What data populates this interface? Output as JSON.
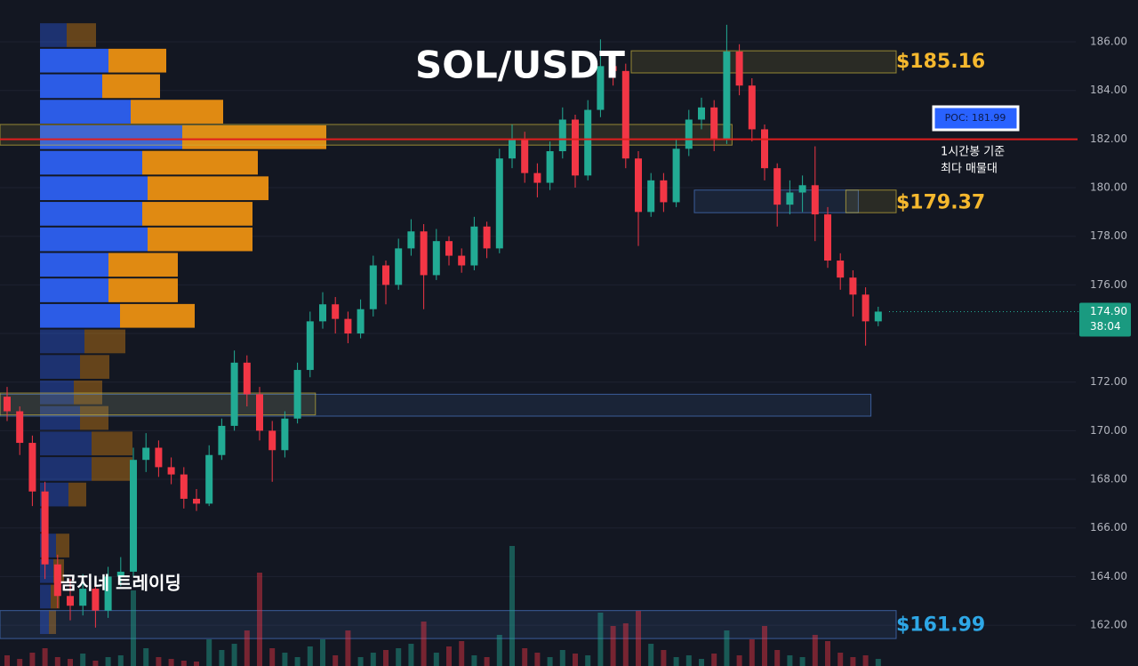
{
  "chart_data": {
    "type": "candlestick",
    "title": "SOL/USDT",
    "ylim": [
      160.32,
      187.72
    ],
    "yticks": [
      {
        "value": 162,
        "label": "162.00"
      },
      {
        "value": 164,
        "label": "164.00"
      },
      {
        "value": 166,
        "label": "166.00"
      },
      {
        "value": 168,
        "label": "168.00"
      },
      {
        "value": 170,
        "label": "170.00"
      },
      {
        "value": 172,
        "label": "172.00"
      },
      {
        "value": 174,
        "label": "174.00"
      },
      {
        "value": 176,
        "label": "176.00"
      },
      {
        "value": 178,
        "label": "178.00"
      },
      {
        "value": 180,
        "label": "180.00"
      },
      {
        "value": 182,
        "label": "182.00"
      },
      {
        "value": 184,
        "label": "184.00"
      },
      {
        "value": 186,
        "label": "186.00"
      }
    ],
    "grid": true,
    "up_color": "#22ab94",
    "down_color": "#f23645",
    "open": [
      171.4,
      170.8,
      169.5,
      167.5,
      164.5,
      163.2,
      162.8,
      163.5,
      162.6,
      164.0,
      164.2,
      168.8,
      169.3,
      168.5,
      168.2,
      167.2,
      167.0,
      169.0,
      170.2,
      172.8,
      171.5,
      170.0,
      169.2,
      170.5,
      172.5,
      174.5,
      175.2,
      174.6,
      174.0,
      175.0,
      176.8,
      176.0,
      177.5,
      178.2,
      176.4,
      177.8,
      177.2,
      176.8,
      178.4,
      177.5,
      181.2,
      182.0,
      180.6,
      180.2,
      181.5,
      182.8,
      180.5,
      183.2,
      185.0,
      184.8,
      181.2,
      179.0,
      180.3,
      179.4,
      181.6,
      182.8,
      183.3,
      182.0,
      185.6,
      184.2,
      182.4,
      180.8,
      179.3,
      179.8,
      180.1,
      178.9,
      177.0,
      176.3,
      175.6,
      174.5
    ],
    "high": [
      171.8,
      171.0,
      169.8,
      167.9,
      164.9,
      163.9,
      164.1,
      163.8,
      164.4,
      164.8,
      169.3,
      169.9,
      169.6,
      168.9,
      168.5,
      167.6,
      169.4,
      170.5,
      173.3,
      173.1,
      171.8,
      170.4,
      170.8,
      172.8,
      174.9,
      175.7,
      175.5,
      174.9,
      175.4,
      177.2,
      177.0,
      177.9,
      178.7,
      178.5,
      178.3,
      178.0,
      177.5,
      178.8,
      178.6,
      181.6,
      182.6,
      182.3,
      181.0,
      181.9,
      183.3,
      183.0,
      183.6,
      186.1,
      185.6,
      185.1,
      181.5,
      180.6,
      180.6,
      182.0,
      183.2,
      183.7,
      183.6,
      186.7,
      185.9,
      184.5,
      182.6,
      181.0,
      180.3,
      180.5,
      181.7,
      179.2,
      177.3,
      176.6,
      175.9,
      175.1
    ],
    "low": [
      170.4,
      169.0,
      166.9,
      163.9,
      162.7,
      162.2,
      162.4,
      161.9,
      162.3,
      163.6,
      164.0,
      168.3,
      168.1,
      167.8,
      166.8,
      166.7,
      166.9,
      168.8,
      170.0,
      171.0,
      169.6,
      167.9,
      168.9,
      170.3,
      172.2,
      174.2,
      174.0,
      173.6,
      173.8,
      174.7,
      175.2,
      175.8,
      177.2,
      175.0,
      176.2,
      176.8,
      176.5,
      176.6,
      177.1,
      177.3,
      180.8,
      180.2,
      179.6,
      179.9,
      181.2,
      180.0,
      180.3,
      182.9,
      184.2,
      180.8,
      177.6,
      178.8,
      179.0,
      179.2,
      181.3,
      182.4,
      181.5,
      181.8,
      183.8,
      181.9,
      180.3,
      178.4,
      178.9,
      179.0,
      177.8,
      176.7,
      175.8,
      174.7,
      173.5,
      174.3
    ],
    "close": [
      170.8,
      169.5,
      167.5,
      164.5,
      163.2,
      162.8,
      163.5,
      162.6,
      164.0,
      164.2,
      168.8,
      169.3,
      168.5,
      168.2,
      167.2,
      167.0,
      169.0,
      170.2,
      172.8,
      171.5,
      170.0,
      169.2,
      170.5,
      172.5,
      174.5,
      175.2,
      174.6,
      174.0,
      175.0,
      176.8,
      176.0,
      177.5,
      178.2,
      176.4,
      177.8,
      177.2,
      176.8,
      178.4,
      177.5,
      181.2,
      182.0,
      180.6,
      180.2,
      181.5,
      182.8,
      180.5,
      183.2,
      185.0,
      184.8,
      181.2,
      179.0,
      180.3,
      179.4,
      181.6,
      182.8,
      183.3,
      182.0,
      185.6,
      184.2,
      182.4,
      180.8,
      179.3,
      179.8,
      180.1,
      178.9,
      177.0,
      176.3,
      175.6,
      174.5,
      174.9
    ],
    "volume": [
      12,
      8,
      15,
      20,
      10,
      8,
      14,
      6,
      10,
      12,
      85,
      20,
      10,
      8,
      6,
      5,
      30,
      18,
      25,
      40,
      105,
      20,
      15,
      10,
      22,
      30,
      12,
      40,
      10,
      15,
      18,
      20,
      25,
      50,
      15,
      22,
      28,
      12,
      10,
      35,
      135,
      20,
      15,
      10,
      18,
      14,
      12,
      60,
      45,
      48,
      62,
      25,
      18,
      10,
      12,
      8,
      14,
      40,
      12,
      30,
      45,
      18,
      12,
      10,
      35,
      28,
      15,
      10,
      12,
      8
    ],
    "volume_lim": [
      0,
      160
    ],
    "profile": {
      "bins": [
        186.8,
        185.75,
        184.7,
        183.65,
        182.6,
        181.55,
        180.5,
        179.45,
        178.4,
        177.35,
        176.3,
        175.25,
        174.2,
        173.15,
        172.1,
        171.05,
        170.0,
        168.95,
        167.9,
        166.85,
        165.8,
        164.75,
        163.7,
        162.65,
        161.6
      ],
      "buy": [
        30,
        77,
        70,
        102,
        160,
        115,
        121,
        115,
        121,
        77,
        77,
        90,
        50,
        45,
        38,
        45,
        58,
        58,
        32,
        8,
        18,
        15,
        12,
        10
      ],
      "sell": [
        33,
        65,
        65,
        104,
        162,
        130,
        136,
        124,
        118,
        78,
        78,
        84,
        46,
        33,
        32,
        32,
        46,
        46,
        20,
        0,
        15,
        12,
        10,
        8
      ],
      "buy_color": "#2c5ce6",
      "sell_color": "#e08a12",
      "value_area": [
        174.2,
        185.75
      ]
    },
    "zones": [
      {
        "top": 185.63,
        "bottom": 184.72,
        "start": 50,
        "end": 70,
        "color": "#c8b43c"
      },
      {
        "top": 182.6,
        "bottom": 181.75,
        "start": 0,
        "end": 57,
        "color": "#c8b43c"
      },
      {
        "top": 179.9,
        "bottom": 178.97,
        "start": 55,
        "end": 67,
        "color": "#4a78c8"
      },
      {
        "top": 179.9,
        "bottom": 178.97,
        "start": 67,
        "end": 70,
        "color": "#c8b43c"
      },
      {
        "top": 171.5,
        "bottom": 170.6,
        "start": 0,
        "end": 68,
        "color": "#4a78c8"
      },
      {
        "top": 171.55,
        "bottom": 170.65,
        "start": 0,
        "end": 24,
        "color": "#c8b43c"
      },
      {
        "top": 162.6,
        "bottom": 161.45,
        "start": 0,
        "end": 70,
        "color": "#4a78c8"
      }
    ],
    "poc": {
      "value": 181.99,
      "label": "POC: 181.99",
      "color": "#e01e1e",
      "note": [
        "1시간봉 기준",
        "최다 매물대"
      ]
    },
    "price_labels": [
      {
        "value": 185.16,
        "label": "$185.16",
        "color": "#f5b82e"
      },
      {
        "value": 179.37,
        "label": "$179.37",
        "color": "#f5b82e"
      },
      {
        "value": 161.99,
        "label": "$161.99",
        "color": "#2ea7e6"
      }
    ],
    "last_price": {
      "value": 174.9,
      "label": "174.90",
      "countdown": "38:04"
    },
    "watermark": "곰지네 트레이딩"
  }
}
